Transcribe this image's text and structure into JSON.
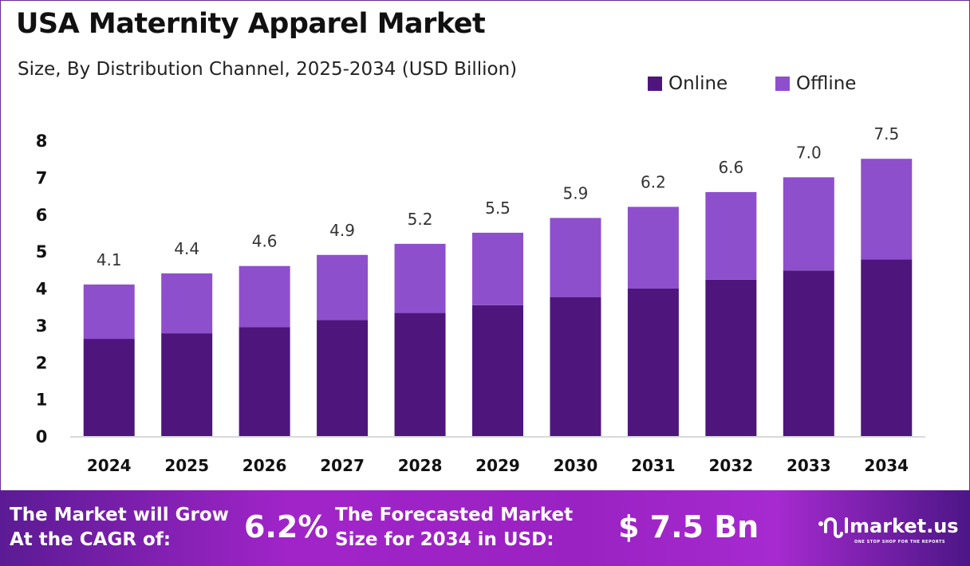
{
  "header": {
    "title": "USA Maternity Apparel Market",
    "subtitle": "Size, By Distribution Channel, 2025-2034 (USD Billion)"
  },
  "chart_data": {
    "type": "bar",
    "stacked": true,
    "title": "USA Maternity Apparel Market",
    "subtitle": "Size, By Distribution Channel, 2025-2034 (USD Billion)",
    "categories": [
      "2024",
      "2025",
      "2026",
      "2027",
      "2028",
      "2029",
      "2030",
      "2031",
      "2032",
      "2033",
      "2034"
    ],
    "series": [
      {
        "name": "Online",
        "color": "#4E167D",
        "values": [
          2.63,
          2.78,
          2.95,
          3.14,
          3.33,
          3.54,
          3.76,
          3.99,
          4.23,
          4.48,
          4.78
        ]
      },
      {
        "name": "Offline",
        "color": "#8E4FCC",
        "values": [
          1.47,
          1.62,
          1.65,
          1.76,
          1.87,
          1.96,
          2.14,
          2.21,
          2.37,
          2.52,
          2.72
        ]
      }
    ],
    "totals": [
      "4.1",
      "4.4",
      "4.6",
      "4.9",
      "5.2",
      "5.5",
      "5.9",
      "6.2",
      "6.6",
      "7.0",
      "7.5"
    ],
    "yticks": [
      "0",
      "1",
      "2",
      "3",
      "4",
      "5",
      "6",
      "7",
      "8"
    ],
    "ylim": [
      0,
      8
    ],
    "grid": false,
    "legend": "top-right"
  },
  "banner": {
    "cagr_label_1": "The Market will Grow",
    "cagr_label_2": "At the CAGR of:",
    "cagr_value": "6.2%",
    "forecast_label_1": "The Forecasted Market",
    "forecast_label_2": "Size for 2034 in USD:",
    "forecast_value": "$ 7.5 Bn",
    "logo_name": "market.us",
    "logo_tagline": "ONE STOP SHOP FOR THE REPORTS"
  }
}
